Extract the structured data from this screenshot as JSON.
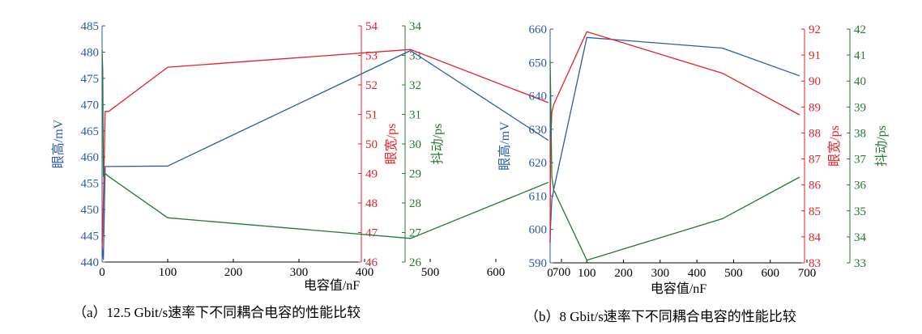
{
  "colors": {
    "blue": "#2a5ba8",
    "red": "#e4222a",
    "green": "#237a2d",
    "axis": "#000000"
  },
  "captions": {
    "a": "（a）12.5 Gbit/s速率下不同耦合电容的性能比较",
    "b": "（b）8 Gbit/s速率下不同耦合电容的性能比较"
  },
  "chart_data": [
    {
      "type": "line",
      "xlabel": "电容值/nF",
      "x_ticks": [
        "0",
        "100",
        "200",
        "300",
        "400",
        "500",
        "600",
        "700"
      ],
      "xlim": [
        0,
        700
      ],
      "axes": [
        {
          "ylabel": "眼高/mV",
          "ylim": [
            440,
            485
          ],
          "ticks": [
            "440",
            "445",
            "450",
            "455",
            "460",
            "465",
            "470",
            "475",
            "480",
            "485"
          ]
        },
        {
          "ylabel": "眼宽/ps",
          "ylim": [
            46,
            54
          ],
          "ticks": [
            "46",
            "47",
            "48",
            "49",
            "50",
            "51",
            "52",
            "53",
            "54"
          ]
        },
        {
          "ylabel": "抖动/ps",
          "ylim": [
            26,
            34
          ],
          "ticks": [
            "26",
            "27",
            "28",
            "29",
            "30",
            "31",
            "32",
            "33",
            "34"
          ]
        }
      ],
      "series": [
        {
          "axis": 0,
          "color": "blue",
          "x": [
            0,
            2,
            4.7,
            10,
            100,
            470,
            680
          ],
          "y": [
            443,
            440.5,
            458.2,
            458.2,
            458.3,
            480.3,
            463.2
          ]
        },
        {
          "axis": 1,
          "color": "red",
          "x": [
            0,
            1,
            4.7,
            10,
            100,
            470,
            680
          ],
          "y": [
            46.5,
            47,
            51.1,
            51.1,
            52.6,
            53.2,
            51.4
          ]
        },
        {
          "axis": 2,
          "color": "green",
          "x": [
            0,
            1,
            2,
            4.7,
            10,
            100,
            470,
            680
          ],
          "y": [
            33.2,
            32.5,
            28.9,
            29.0,
            28.9,
            27.5,
            26.8,
            28.7
          ]
        }
      ]
    },
    {
      "type": "line",
      "xlabel": "电容值/nF",
      "x_ticks": [
        "0",
        "100",
        "200",
        "300",
        "400",
        "500",
        "600",
        "700"
      ],
      "xlim": [
        0,
        700
      ],
      "axes": [
        {
          "ylabel": "眼高/mV",
          "ylim": [
            590,
            660
          ],
          "ticks": [
            "590",
            "600",
            "610",
            "620",
            "630",
            "640",
            "650",
            "660"
          ]
        },
        {
          "ylabel": "眼宽/ps",
          "ylim": [
            83,
            92
          ],
          "ticks": [
            "83",
            "84",
            "85",
            "86",
            "87",
            "88",
            "89",
            "90",
            "91",
            "92"
          ]
        },
        {
          "ylabel": "抖动/ps",
          "ylim": [
            33,
            42
          ],
          "ticks": [
            "33",
            "34",
            "35",
            "36",
            "37",
            "38",
            "39",
            "40",
            "41",
            "42"
          ]
        }
      ],
      "series": [
        {
          "axis": 0,
          "color": "blue",
          "x": [
            0,
            1,
            4.7,
            10,
            100,
            470,
            680
          ],
          "y": [
            596,
            601,
            609,
            612,
            657.5,
            654.3,
            646
          ]
        },
        {
          "axis": 1,
          "color": "red",
          "x": [
            0,
            1,
            4.7,
            10,
            100,
            470,
            680
          ],
          "y": [
            83.8,
            87.5,
            88.8,
            89.1,
            91.9,
            90.3,
            88.7
          ]
        },
        {
          "axis": 2,
          "color": "green",
          "x": [
            0,
            1,
            4.7,
            10,
            100,
            470,
            680
          ],
          "y": [
            40.8,
            39.8,
            36.3,
            35.8,
            33.1,
            34.7,
            36.3
          ]
        }
      ]
    }
  ]
}
